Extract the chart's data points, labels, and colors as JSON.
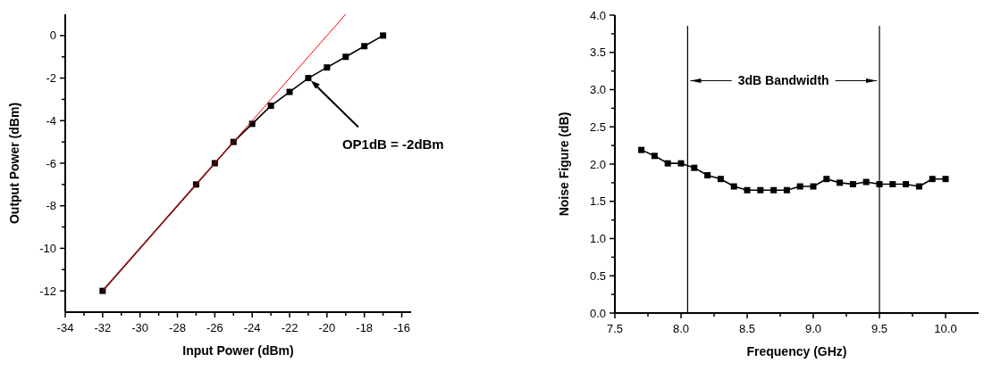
{
  "chart_data": [
    {
      "type": "line",
      "xlabel": "Input Power (dBm)",
      "ylabel": "Output Power (dBm)",
      "marker": "square",
      "line_style": "solid",
      "xlim": [
        -34,
        -15.5
      ],
      "ylim": [
        -13,
        1
      ],
      "xticks": [
        -34,
        {
          "value": -33,
          "label": null
        },
        -32,
        {
          "value": -31,
          "label": null
        },
        -30,
        {
          "value": -29,
          "label": null
        },
        -28,
        {
          "value": -27,
          "label": null
        },
        -26,
        {
          "value": -25,
          "label": null
        },
        -24,
        {
          "value": -23,
          "label": null
        },
        -22,
        {
          "value": -21,
          "label": null
        },
        -20,
        {
          "value": -19,
          "label": null
        },
        -18,
        {
          "value": -17,
          "label": null
        },
        -16
      ],
      "yticks": [
        -12,
        {
          "value": -11,
          "label": null
        },
        -10,
        {
          "value": -9,
          "label": null
        },
        -8,
        {
          "value": -7,
          "label": null
        },
        -6,
        {
          "value": -5,
          "label": null
        },
        -4,
        {
          "value": -3,
          "label": null
        },
        -2,
        {
          "value": -1,
          "label": null
        },
        0
      ],
      "series": [
        {
          "color": "#000000",
          "x": [
            -32,
            -27,
            -26,
            -25,
            -24,
            -23,
            -22,
            -21,
            -20,
            -19,
            -18,
            -17
          ],
          "values": [
            -12,
            -7,
            -6,
            -5,
            -4.15,
            -3.3,
            -2.65,
            -2,
            -1.5,
            -1,
            -0.5,
            0
          ]
        },
        {
          "type": "line",
          "marker": "none",
          "color": "#ff0000",
          "x": [
            -32,
            -19
          ],
          "values": [
            -12,
            1
          ]
        }
      ],
      "annotations": [
        {
          "text": "OP1dB = -2dBm",
          "x": -21,
          "y": -2
        }
      ]
    },
    {
      "type": "line",
      "xlabel": "Frequency (GHz)",
      "ylabel": "Noise Figure (dB)",
      "marker": "square",
      "line_style": "solid",
      "xlim": [
        7.5,
        10.25
      ],
      "ylim": [
        0,
        4
      ],
      "xticks": [
        {
          "value": 7.5,
          "label": "7.5"
        },
        {
          "value": 7.75,
          "label": null
        },
        {
          "value": 8,
          "label": "8.0"
        },
        {
          "value": 8.25,
          "label": null
        },
        {
          "value": 8.5,
          "label": "8.5"
        },
        {
          "value": 8.75,
          "label": null
        },
        {
          "value": 9,
          "label": "9.0"
        },
        {
          "value": 9.25,
          "label": null
        },
        {
          "value": 9.5,
          "label": "9.5"
        },
        {
          "value": 9.75,
          "label": null
        },
        {
          "value": 10,
          "label": "10.0"
        }
      ],
      "yticks": [
        {
          "value": 0,
          "label": "0.0"
        },
        {
          "value": 0.25,
          "label": null
        },
        {
          "value": 0.5,
          "label": "0.5"
        },
        {
          "value": 0.75,
          "label": null
        },
        {
          "value": 1,
          "label": "1.0"
        },
        {
          "value": 1.25,
          "label": null
        },
        {
          "value": 1.5,
          "label": "1.5"
        },
        {
          "value": 1.75,
          "label": null
        },
        {
          "value": 2,
          "label": "2.0"
        },
        {
          "value": 2.25,
          "label": null
        },
        {
          "value": 2.5,
          "label": "2.5"
        },
        {
          "value": 2.75,
          "label": null
        },
        {
          "value": 3,
          "label": "3.0"
        },
        {
          "value": 3.25,
          "label": null
        },
        {
          "value": 3.5,
          "label": "3.5"
        },
        {
          "value": 3.75,
          "label": null
        },
        {
          "value": 4,
          "label": "4.0"
        }
      ],
      "x": [
        7.7,
        7.8,
        7.9,
        8.0,
        8.1,
        8.2,
        8.3,
        8.4,
        8.5,
        8.6,
        8.7,
        8.8,
        8.9,
        9.0,
        9.1,
        9.2,
        9.3,
        9.4,
        9.5,
        9.6,
        9.7,
        9.8,
        9.9,
        10.0
      ],
      "series": [
        {
          "color": "#000000",
          "values": [
            2.19,
            2.11,
            2.01,
            2.01,
            1.95,
            1.85,
            1.8,
            1.7,
            1.65,
            1.65,
            1.65,
            1.65,
            1.7,
            1.7,
            1.8,
            1.75,
            1.73,
            1.76,
            1.73,
            1.73,
            1.73,
            1.7,
            1.8,
            1.8
          ]
        }
      ],
      "ref_lines": [
        {
          "axis": "x",
          "value": 8.05,
          "color": "#000000"
        },
        {
          "axis": "x",
          "value": 9.5,
          "color": "#000000"
        }
      ],
      "annotations": [
        "3dB Bandwidth"
      ]
    }
  ]
}
